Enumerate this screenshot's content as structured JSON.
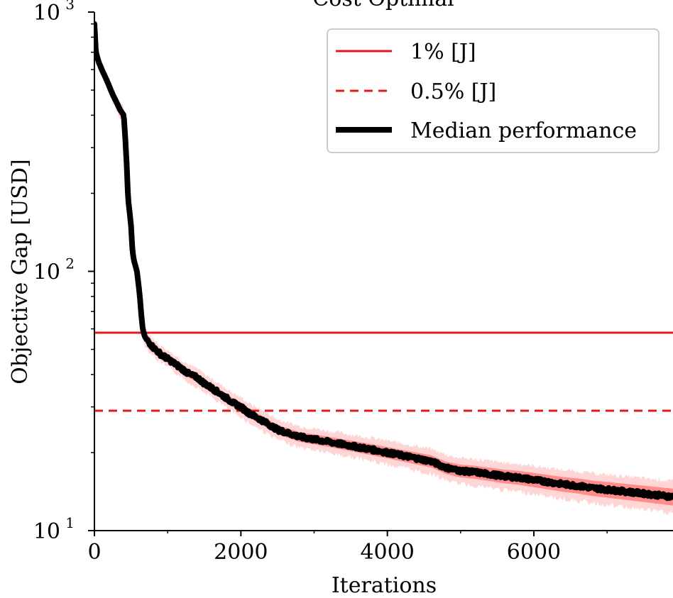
{
  "chart_data": {
    "type": "line",
    "title": "Cost Optimal",
    "xlabel": "Iterations",
    "ylabel": "Objective Gap [USD]",
    "xlim": [
      0,
      7900
    ],
    "ylim": [
      10,
      1000
    ],
    "yscale": "log",
    "grid": false,
    "legend_position": "top-right",
    "x_ticks": [
      {
        "value": 0,
        "label": "0"
      },
      {
        "value": 2000,
        "label": "2000"
      },
      {
        "value": 4000,
        "label": "4000"
      },
      {
        "value": 6000,
        "label": "6000"
      }
    ],
    "y_ticks": [
      {
        "value": 10,
        "base": "10",
        "exp": "1"
      },
      {
        "value": 100,
        "base": "10",
        "exp": "2"
      },
      {
        "value": 1000,
        "base": "10",
        "exp": "3"
      }
    ],
    "reference_lines": [
      {
        "name": "1% [J]",
        "y": 58,
        "style": "solid",
        "color": "#e31a1c"
      },
      {
        "name": "0.5% [J]",
        "y": 29,
        "style": "dashed",
        "color": "#e31a1c"
      }
    ],
    "series": [
      {
        "name": "Median performance",
        "color": "#000000",
        "x": [
          0,
          20,
          60,
          100,
          150,
          200,
          250,
          300,
          350,
          400,
          420,
          440,
          460,
          480,
          500,
          520,
          540,
          560,
          580,
          600,
          620,
          640,
          660,
          680,
          700,
          750,
          800,
          900,
          1000,
          1100,
          1200,
          1300,
          1400,
          1500,
          1600,
          1700,
          1800,
          1900,
          2000,
          2100,
          2200,
          2300,
          2400,
          2500,
          2600,
          2800,
          3000,
          3200,
          3400,
          3600,
          3800,
          4000,
          4200,
          4400,
          4600,
          4800,
          5000,
          5200,
          5400,
          5600,
          5800,
          6000,
          6200,
          6400,
          6600,
          6800,
          7000,
          7200,
          7400,
          7600,
          7800,
          7900
        ],
        "y": [
          900,
          700,
          640,
          600,
          560,
          520,
          480,
          450,
          420,
          400,
          330,
          260,
          190,
          170,
          150,
          120,
          110,
          105,
          100,
          90,
          80,
          68,
          60,
          57,
          55,
          53,
          51,
          48,
          46,
          44,
          42,
          40,
          39,
          37,
          35.5,
          34,
          32.5,
          31,
          30,
          28.5,
          27.5,
          26.5,
          25.5,
          24.5,
          24,
          23,
          22.5,
          22,
          21.5,
          21,
          20.5,
          20,
          19.5,
          19,
          18.5,
          17.5,
          17,
          16.8,
          16.5,
          16.2,
          16,
          15.7,
          15.4,
          15.1,
          14.9,
          14.6,
          14.4,
          14.2,
          14,
          13.8,
          13.6,
          13.5
        ]
      }
    ],
    "band": {
      "color": "#ff5a5a",
      "description": ""
    }
  }
}
